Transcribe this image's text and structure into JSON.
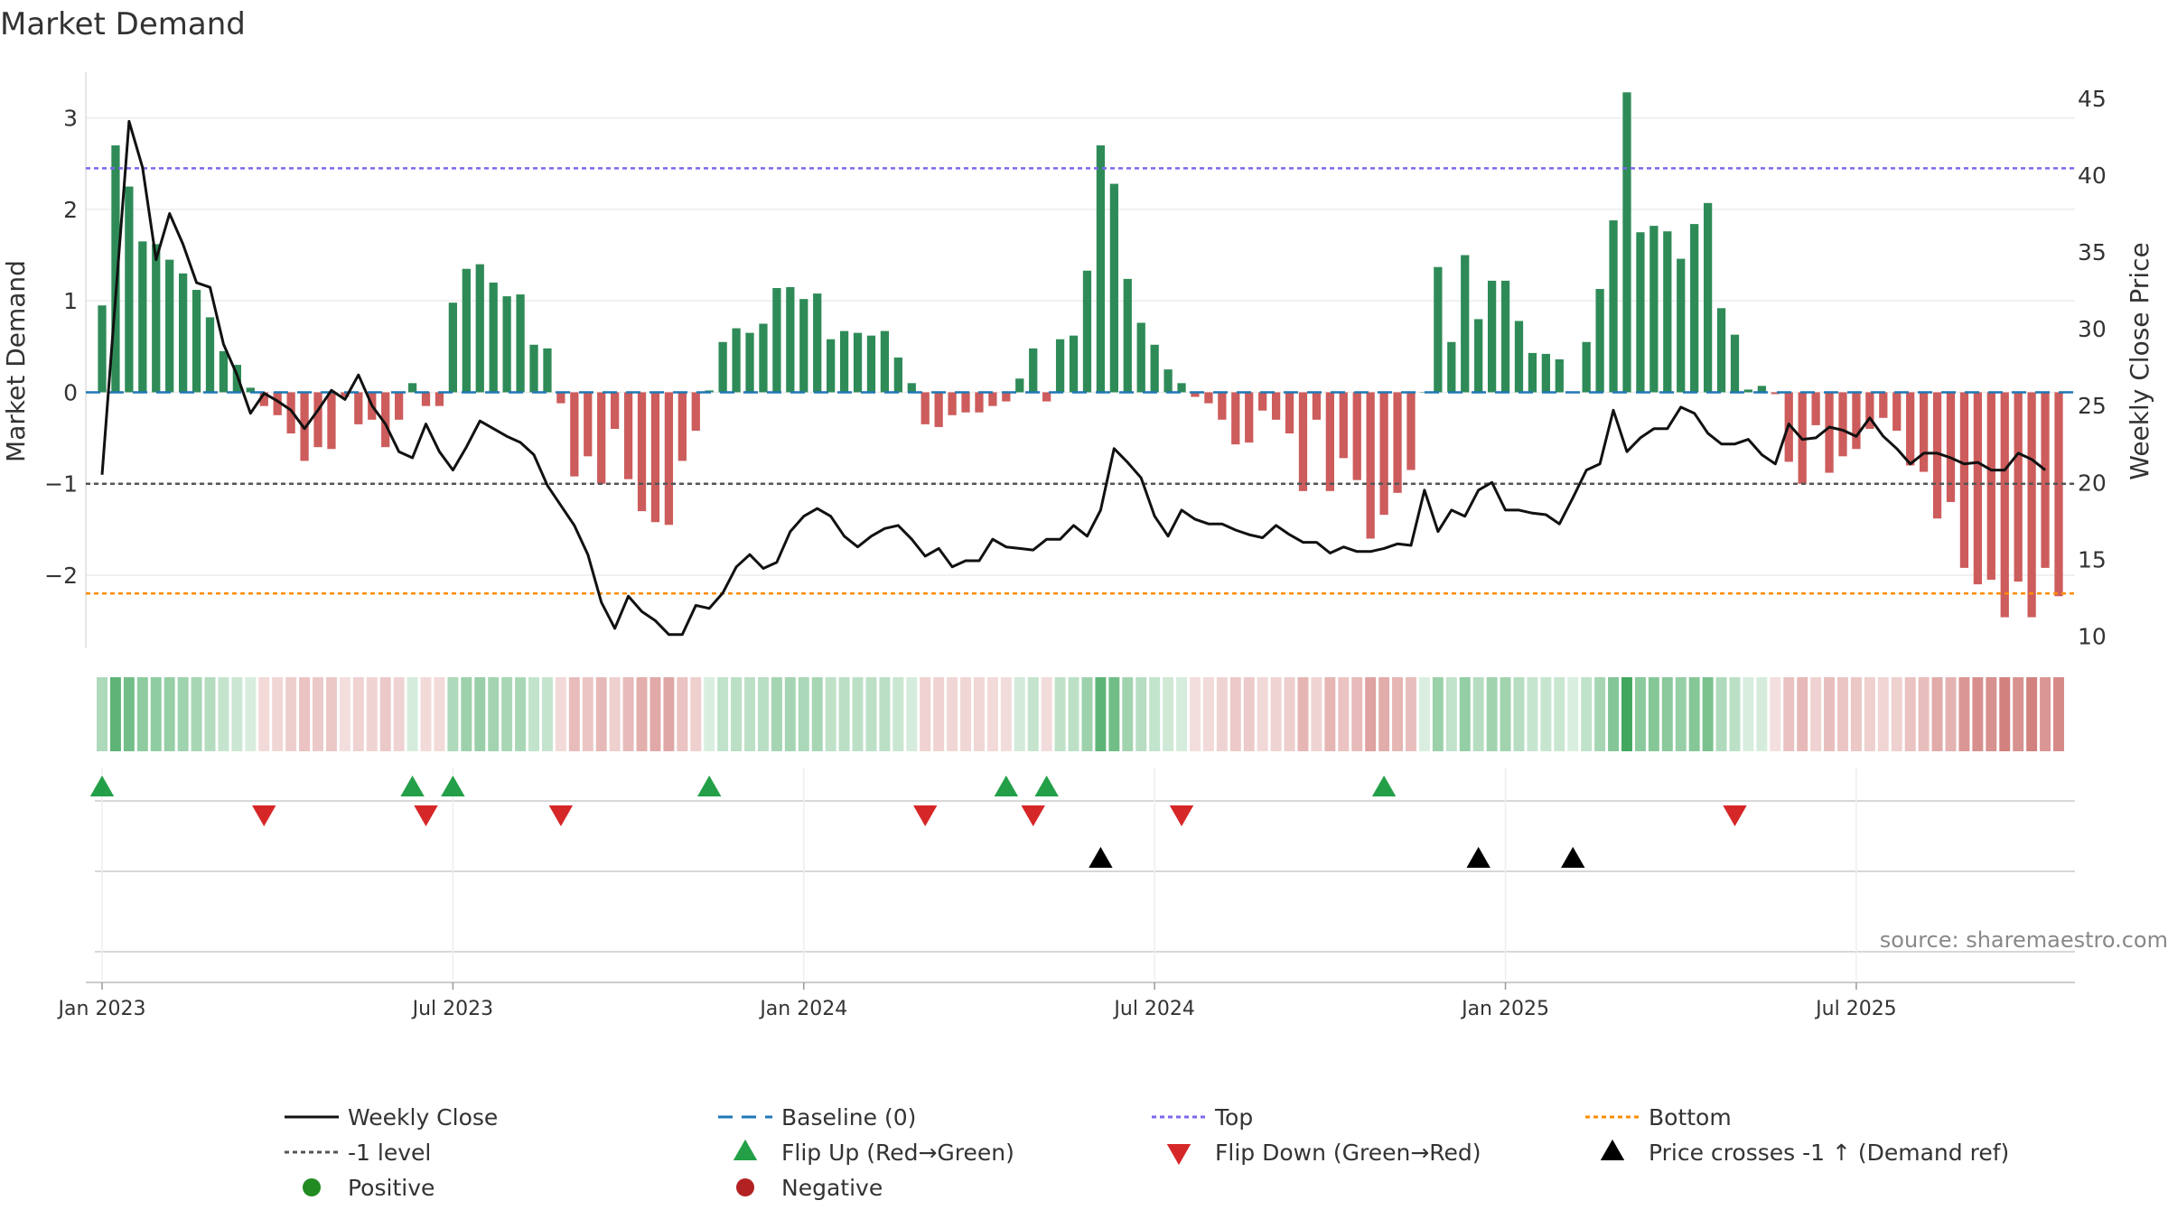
{
  "chart_data": {
    "type": "bar",
    "title": "Market Demand",
    "ylabel": "Market Demand",
    "y2label": "Weekly Close Price",
    "ylim": [
      -2.8,
      3.5
    ],
    "y2lim": [
      9.2,
      46.7
    ],
    "yticks": [
      -2,
      -1,
      0,
      1,
      2,
      3
    ],
    "yticklabels": [
      "−2",
      "−1",
      "0",
      "1",
      "2",
      "3"
    ],
    "y2ticks": [
      10,
      15,
      20,
      25,
      30,
      35,
      40,
      45
    ],
    "x_tick_index": [
      0,
      26,
      52,
      78,
      104,
      130
    ],
    "x_tick_labels": [
      "Jan 2023",
      "Jul 2023",
      "Jan 2024",
      "Jul 2024",
      "Jan 2025",
      "Jul 2025"
    ],
    "reference_lines": {
      "top": 2.45,
      "minus_one": -1,
      "bottom": -2.2,
      "baseline": 0
    },
    "demand": [
      0.95,
      2.7,
      2.25,
      1.65,
      1.62,
      1.45,
      1.3,
      1.12,
      0.82,
      0.45,
      0.3,
      0.05,
      -0.15,
      -0.25,
      -0.45,
      -0.75,
      -0.6,
      -0.62,
      -0.05,
      -0.35,
      -0.3,
      -0.6,
      -0.3,
      0.1,
      -0.15,
      -0.15,
      0.98,
      1.35,
      1.4,
      1.2,
      1.05,
      1.07,
      0.52,
      0.48,
      -0.12,
      -0.92,
      -0.7,
      -1.0,
      -0.4,
      -0.95,
      -1.3,
      -1.42,
      -1.45,
      -0.75,
      -0.42,
      0.02,
      0.55,
      0.7,
      0.65,
      0.75,
      1.14,
      1.15,
      1.02,
      1.08,
      0.58,
      0.67,
      0.65,
      0.62,
      0.67,
      0.38,
      0.1,
      -0.35,
      -0.38,
      -0.25,
      -0.22,
      -0.22,
      -0.15,
      -0.1,
      0.15,
      0.48,
      -0.1,
      0.58,
      0.62,
      1.33,
      2.7,
      2.28,
      1.24,
      0.76,
      0.52,
      0.25,
      0.1,
      -0.05,
      -0.12,
      -0.3,
      -0.57,
      -0.55,
      -0.2,
      -0.3,
      -0.45,
      -1.08,
      -0.3,
      -1.08,
      -0.72,
      -0.96,
      -1.6,
      -1.34,
      -1.1,
      -0.85,
      0.0,
      1.37,
      0.55,
      1.5,
      0.8,
      1.22,
      1.22,
      0.78,
      0.43,
      0.42,
      0.36,
      0.0,
      0.55,
      1.13,
      1.88,
      3.28,
      1.75,
      1.82,
      1.76,
      1.46,
      1.84,
      2.07,
      0.92,
      0.63,
      0.03,
      0.07,
      -0.02,
      -0.76,
      -1.0,
      -0.36,
      -0.88,
      -0.7,
      -0.62,
      -0.4,
      -0.28,
      -0.42,
      -0.8,
      -0.87,
      -1.38,
      -1.2,
      -1.92,
      -2.1,
      -2.05,
      -2.46,
      -2.07,
      -2.46,
      -1.92,
      -2.23
    ],
    "weekly_close": [
      20.5,
      32.0,
      43.5,
      40.5,
      34.5,
      37.5,
      35.5,
      33.0,
      32.7,
      29.0,
      27.0,
      24.5,
      25.8,
      25.3,
      24.7,
      23.5,
      24.7,
      26.0,
      25.4,
      27.0,
      25.0,
      23.8,
      22.0,
      21.6,
      23.8,
      22.0,
      20.8,
      22.3,
      24.0,
      23.5,
      23.0,
      22.6,
      21.8,
      19.8,
      18.5,
      17.2,
      15.3,
      12.2,
      10.5,
      12.6,
      11.6,
      11.0,
      10.1,
      10.1,
      12.0,
      11.8,
      12.8,
      14.5,
      15.3,
      14.4,
      14.8,
      16.8,
      17.8,
      18.3,
      17.8,
      16.5,
      15.8,
      16.5,
      17.0,
      17.2,
      16.3,
      15.2,
      15.7,
      14.5,
      14.9,
      14.9,
      16.3,
      15.8,
      15.7,
      15.6,
      16.3,
      16.3,
      17.2,
      16.5,
      18.2,
      22.2,
      21.3,
      20.3,
      17.8,
      16.5,
      18.2,
      17.6,
      17.3,
      17.3,
      16.9,
      16.6,
      16.4,
      17.2,
      16.6,
      16.1,
      16.1,
      15.4,
      15.8,
      15.5,
      15.5,
      15.7,
      16.0,
      15.9,
      19.5,
      16.8,
      18.2,
      17.8,
      19.5,
      20.0,
      18.2,
      18.2,
      18.0,
      17.9,
      17.3,
      19.0,
      20.8,
      21.2,
      24.7,
      22.0,
      22.9,
      23.5,
      23.5,
      24.9,
      24.5,
      23.2,
      22.5,
      22.5,
      22.8,
      21.8,
      21.2,
      23.8,
      22.8,
      22.9,
      23.6,
      23.4,
      23.0,
      24.2,
      23.0,
      22.2,
      21.2,
      21.9,
      21.9,
      21.6,
      21.2,
      21.3,
      20.8,
      20.8,
      21.9,
      21.5,
      20.8
    ],
    "flip_up_index": [
      0,
      23,
      26,
      45,
      67,
      70,
      95
    ],
    "flip_down_index": [
      12,
      24,
      34,
      61,
      69,
      80,
      121
    ],
    "price_cross_index": [
      74,
      102,
      109
    ],
    "colors": {
      "positive_bar": "#2e8b57",
      "negative_bar": "#cd5c5c",
      "price_line": "#111111",
      "baseline": "#1f77b4",
      "top": "#7b68ee",
      "minus_one": "#555555",
      "bottom": "#ff8c00",
      "flip_up": "#23a047",
      "flip_down": "#d62728",
      "positive_dot": "#228b22",
      "negative_dot": "#b22222",
      "cross": "#000000"
    },
    "legend": [
      {
        "label": "Weekly Close",
        "kind": "line",
        "color": "#111111"
      },
      {
        "label": "Baseline (0)",
        "kind": "dash",
        "color": "#1f77b4"
      },
      {
        "label": "Top",
        "kind": "dot",
        "color": "#7b68ee"
      },
      {
        "label": "Bottom",
        "kind": "dot",
        "color": "#ff8c00"
      },
      {
        "label": "-1 level",
        "kind": "dot",
        "color": "#555555"
      },
      {
        "label": "Flip Up (Red→Green)",
        "kind": "tri-up",
        "color": "#23a047"
      },
      {
        "label": "Flip Down (Green→Red)",
        "kind": "tri-down",
        "color": "#d62728"
      },
      {
        "label": "Price crosses -1 ↑ (Demand ref)",
        "kind": "tri-up",
        "color": "#000000"
      },
      {
        "label": "Positive",
        "kind": "circle",
        "color": "#228b22"
      },
      {
        "label": "Negative",
        "kind": "circle",
        "color": "#b22222"
      }
    ],
    "source": "source: sharemaestro.com"
  }
}
